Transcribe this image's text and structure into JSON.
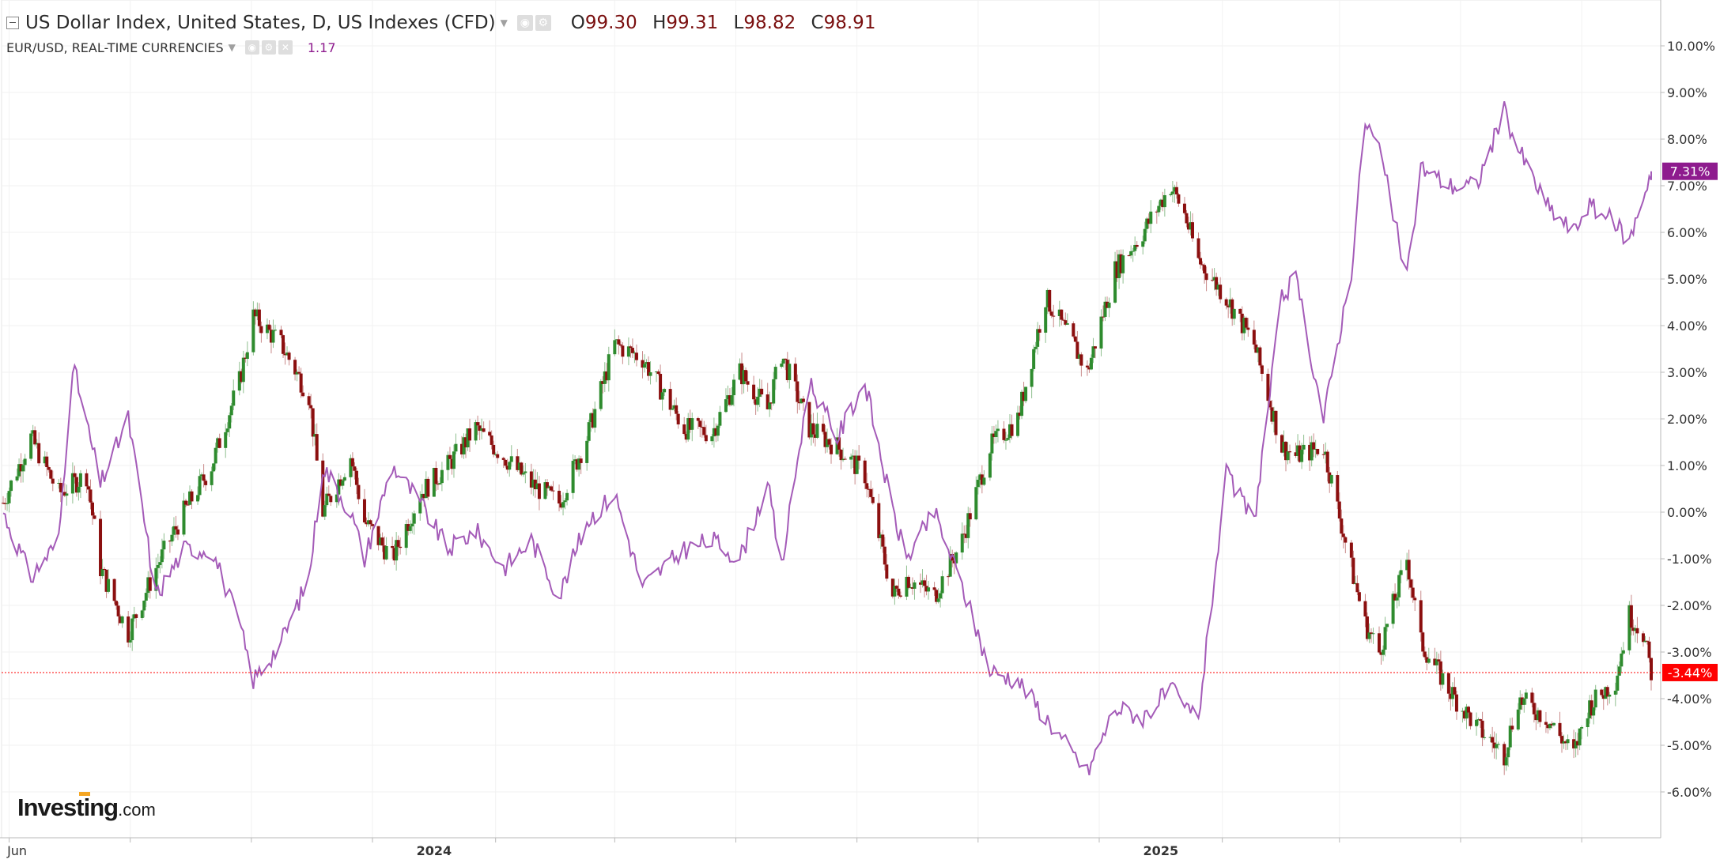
{
  "header": {
    "main_series": "US Dollar Index, United States, D, US Indexes (CFD)",
    "ohlc": [
      {
        "k": "O",
        "v": "99.30"
      },
      {
        "k": "H",
        "v": "99.31"
      },
      {
        "k": "L",
        "v": "98.82"
      },
      {
        "k": "C",
        "v": "98.91"
      }
    ],
    "compare_series": "EUR/USD, REAL-TIME CURRENCIES",
    "compare_value": "1.17"
  },
  "logo": {
    "brand": "Investing",
    "suffix": ".com"
  },
  "chart_data": {
    "type": "line",
    "title": "",
    "xlabel": "",
    "ylabel": "",
    "x_ticks": [
      "Jun",
      "2024",
      "2025"
    ],
    "x_range": [
      "2023-05-29",
      "2025-09-05"
    ],
    "ylim": [
      -7.0,
      11.0
    ],
    "y_ticks": [
      "10.00%",
      "9.00%",
      "8.00%",
      "7.00%",
      "6.00%",
      "5.00%",
      "4.00%",
      "3.00%",
      "2.00%",
      "1.00%",
      "0.00%",
      "-1.00%",
      "-2.00%",
      "-3.00%",
      "-4.00%",
      "-5.00%",
      "-6.00%"
    ],
    "grid": true,
    "colors": {
      "up": "#2e8b2e",
      "down": "#8b0f0f",
      "compare": "#a45bb8",
      "last_main": "#ff0000",
      "last_compare": "#8e1b8e"
    },
    "series": [
      {
        "name": "US Dollar Index",
        "type": "candlestick",
        "last_label": "-3.44%",
        "last": -3.44,
        "x": [
          "2023-05-29",
          "2023-06-12",
          "2023-06-26",
          "2023-07-10",
          "2023-07-17",
          "2023-07-31",
          "2023-08-14",
          "2023-08-28",
          "2023-09-11",
          "2023-09-25",
          "2023-10-02",
          "2023-10-16",
          "2023-10-30",
          "2023-11-06",
          "2023-11-20",
          "2023-11-27",
          "2023-12-11",
          "2023-12-25",
          "2024-01-08",
          "2024-01-22",
          "2024-02-05",
          "2024-02-19",
          "2024-03-04",
          "2024-03-18",
          "2024-04-01",
          "2024-04-15",
          "2024-05-06",
          "2024-05-20",
          "2024-06-03",
          "2024-06-17",
          "2024-06-24",
          "2024-07-08",
          "2024-07-22",
          "2024-08-05",
          "2024-08-19",
          "2024-08-26",
          "2024-09-09",
          "2024-09-23",
          "2024-10-07",
          "2024-10-21",
          "2024-11-04",
          "2024-11-18",
          "2024-11-25",
          "2024-12-09",
          "2024-12-23",
          "2025-01-06",
          "2025-01-13",
          "2025-01-20",
          "2025-02-03",
          "2025-02-17",
          "2025-03-03",
          "2025-03-10",
          "2025-03-24",
          "2025-04-07",
          "2025-04-14",
          "2025-04-21",
          "2025-05-05",
          "2025-05-12",
          "2025-05-26",
          "2025-06-09",
          "2025-06-23",
          "2025-06-30",
          "2025-07-14",
          "2025-07-28",
          "2025-08-04",
          "2025-08-18",
          "2025-08-25",
          "2025-09-01",
          "2025-09-05"
        ],
        "y": [
          0.2,
          1.6,
          0.4,
          0.8,
          -1.2,
          -2.6,
          -1.2,
          0.0,
          1.0,
          2.8,
          4.2,
          3.6,
          2.5,
          0.0,
          1.2,
          -0.2,
          -1.0,
          0.4,
          1.0,
          1.8,
          1.2,
          0.6,
          0.2,
          1.6,
          3.6,
          3.3,
          1.8,
          1.7,
          3.0,
          2.2,
          3.4,
          1.8,
          1.4,
          0.8,
          -1.8,
          -1.4,
          -1.8,
          -0.6,
          1.4,
          2.0,
          4.6,
          3.6,
          3.0,
          5.2,
          6.0,
          7.0,
          6.4,
          5.4,
          4.6,
          3.6,
          1.4,
          1.2,
          1.4,
          -1.2,
          -2.4,
          -3.0,
          -1.0,
          -2.8,
          -3.8,
          -4.6,
          -5.2,
          -4.0,
          -4.4,
          -5.2,
          -4.2,
          -3.6,
          -2.2,
          -2.6,
          -3.44
        ]
      },
      {
        "name": "EUR/USD",
        "type": "line",
        "last_label": "7.31%",
        "last": 7.31,
        "x": [
          "2023-05-29",
          "2023-06-12",
          "2023-06-26",
          "2023-07-03",
          "2023-07-17",
          "2023-07-31",
          "2023-08-14",
          "2023-08-28",
          "2023-09-11",
          "2023-09-25",
          "2023-10-02",
          "2023-10-16",
          "2023-10-30",
          "2023-11-06",
          "2023-11-20",
          "2023-11-27",
          "2023-12-11",
          "2023-12-25",
          "2024-01-08",
          "2024-01-22",
          "2024-02-05",
          "2024-02-19",
          "2024-03-04",
          "2024-03-18",
          "2024-04-01",
          "2024-04-15",
          "2024-05-06",
          "2024-05-20",
          "2024-06-03",
          "2024-06-17",
          "2024-06-24",
          "2024-07-08",
          "2024-07-22",
          "2024-08-05",
          "2024-08-19",
          "2024-08-26",
          "2024-09-09",
          "2024-09-23",
          "2024-10-07",
          "2024-10-21",
          "2024-11-04",
          "2024-11-18",
          "2024-11-25",
          "2024-12-09",
          "2024-12-23",
          "2025-01-06",
          "2025-01-13",
          "2025-01-20",
          "2025-02-03",
          "2025-02-17",
          "2025-03-03",
          "2025-03-10",
          "2025-03-24",
          "2025-04-07",
          "2025-04-14",
          "2025-04-21",
          "2025-05-05",
          "2025-05-12",
          "2025-05-26",
          "2025-06-09",
          "2025-06-23",
          "2025-06-30",
          "2025-07-14",
          "2025-07-28",
          "2025-08-04",
          "2025-08-18",
          "2025-08-25",
          "2025-09-01",
          "2025-09-05"
        ],
        "y": [
          0.0,
          -1.4,
          -0.6,
          3.2,
          0.6,
          2.0,
          -1.8,
          -0.8,
          -0.8,
          -2.4,
          -3.6,
          -2.8,
          -1.4,
          1.0,
          0.0,
          -1.0,
          1.0,
          0.2,
          -0.8,
          -0.4,
          -1.2,
          -0.6,
          -1.8,
          -0.2,
          0.4,
          -1.6,
          -0.8,
          -0.6,
          -1.0,
          0.6,
          -1.2,
          2.8,
          1.6,
          2.8,
          0.0,
          -1.0,
          0.0,
          -1.6,
          -3.4,
          -3.6,
          -4.4,
          -5.2,
          -5.6,
          -4.2,
          -4.4,
          -3.8,
          -4.2,
          -4.4,
          0.8,
          -0.2,
          4.6,
          5.0,
          2.0,
          5.2,
          8.4,
          7.8,
          5.0,
          7.4,
          7.0,
          7.0,
          8.6,
          7.8,
          6.6,
          6.0,
          6.6,
          6.2,
          5.8,
          6.8,
          7.31
        ]
      }
    ]
  }
}
